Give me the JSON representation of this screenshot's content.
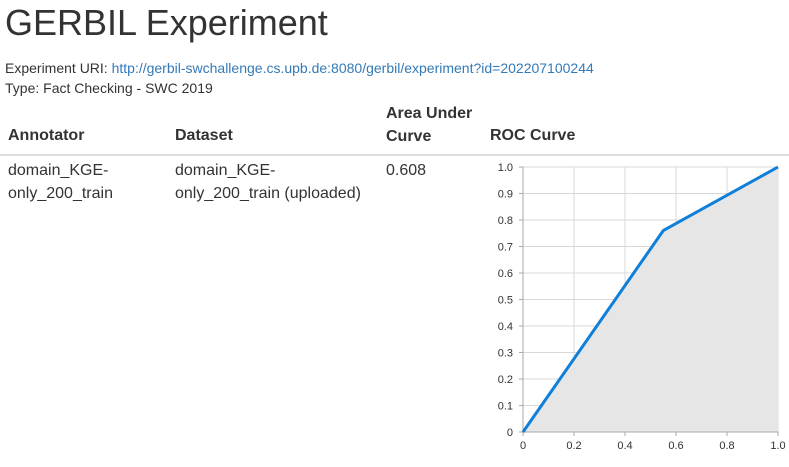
{
  "page": {
    "title": "GERBIL Experiment",
    "uri_label": "Experiment URI:",
    "uri": "http://gerbil-swchallenge.cs.upb.de:8080/gerbil/experiment?id=202207100244",
    "type_label": "Type:",
    "type": "Fact Checking - SWC 2019"
  },
  "table": {
    "headers": {
      "annotator": "Annotator",
      "dataset": "Dataset",
      "auc_line1": "Area Under",
      "auc_line2": "Curve",
      "roc": "ROC Curve"
    },
    "row": {
      "annotator_line1": "domain_KGE-",
      "annotator_line2": "only_200_train",
      "dataset_line1": "domain_KGE-",
      "dataset_line2": "only_200_train (uploaded)",
      "auc": "0.608"
    }
  },
  "chart_data": {
    "type": "area",
    "title": "",
    "xlabel": "",
    "ylabel": "",
    "xlim": [
      0,
      1
    ],
    "ylim": [
      0,
      1
    ],
    "x_ticks": [
      "0",
      "0.2",
      "0.4",
      "0.6",
      "0.8",
      "1.0"
    ],
    "y_ticks": [
      "0",
      "0.1",
      "0.2",
      "0.3",
      "0.4",
      "0.5",
      "0.6",
      "0.7",
      "0.8",
      "0.9",
      "1.0"
    ],
    "grid": true,
    "series": [
      {
        "x": [
          0,
          0.55,
          1.0
        ],
        "y": [
          0,
          0.76,
          1.0
        ]
      }
    ],
    "colors": {
      "line": "#0f7fd8",
      "fill": "#e6e6e6",
      "grid": "#d8d8d8",
      "axis": "#aaaaaa"
    }
  }
}
